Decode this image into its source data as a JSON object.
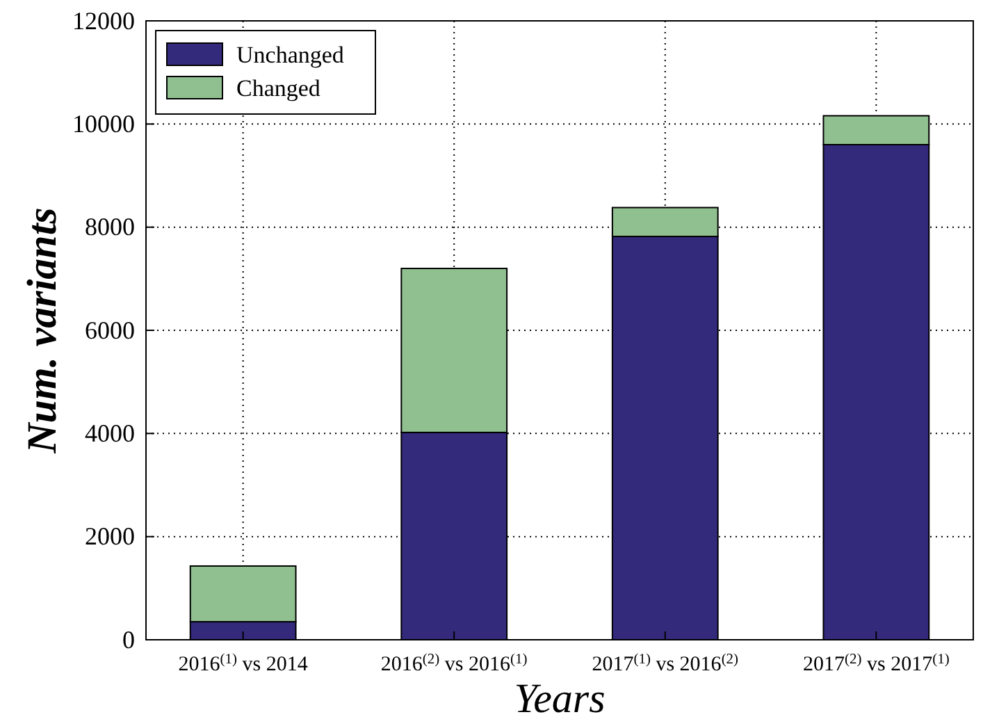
{
  "chart_data": {
    "type": "bar",
    "stacked": true,
    "xlabel": "Years",
    "ylabel": "Num. variants",
    "categories": [
      "2016$^{(1)}$ vs 2014",
      "2016$^{(2)}$ vs 2016$^{(1)}$",
      "2017$^{(1)}$ vs 2016$^{(2)}$",
      "2017$^{(2)}$ vs 2017$^{(1)}$"
    ],
    "series": [
      {
        "name": "Unchanged",
        "color": "#332a7c",
        "values": [
          350,
          4020,
          7820,
          9600
        ]
      },
      {
        "name": "Changed",
        "color": "#90c090",
        "values": [
          1080,
          3180,
          560,
          560
        ]
      }
    ],
    "ylim": [
      0,
      12000
    ],
    "yticks": [
      0,
      2000,
      4000,
      6000,
      8000,
      10000,
      12000
    ],
    "grid": true,
    "legend": "top left"
  }
}
